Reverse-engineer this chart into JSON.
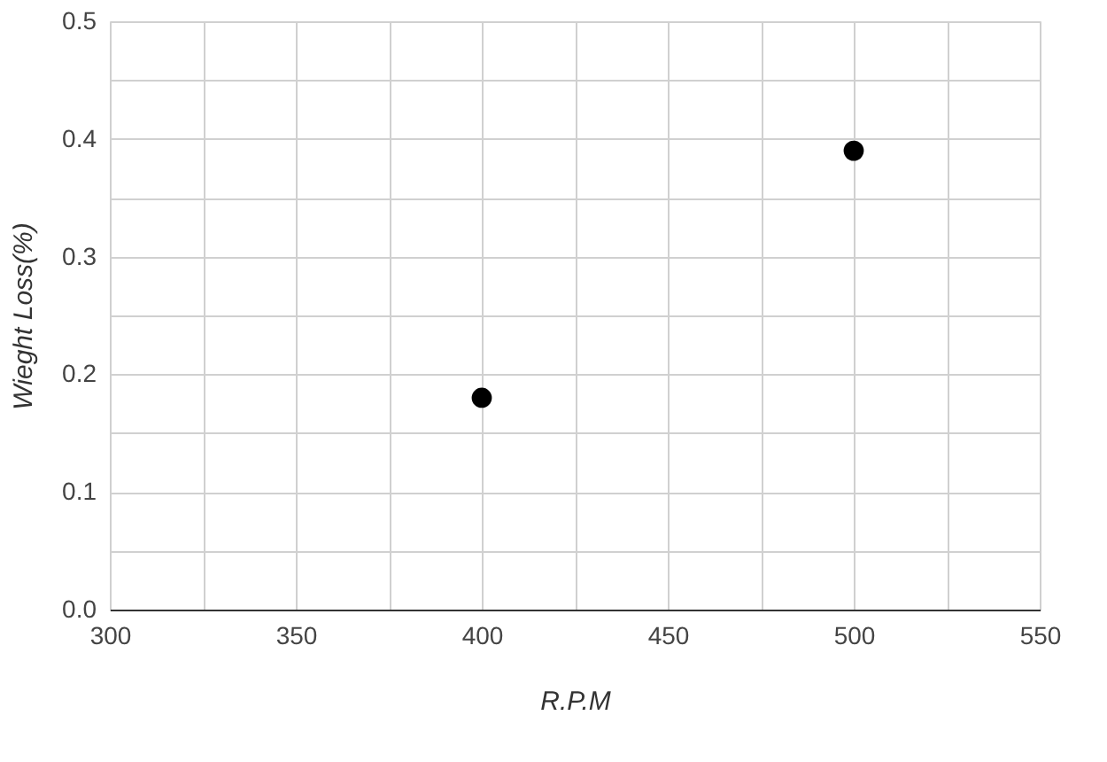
{
  "chart_data": {
    "type": "scatter",
    "xlabel": "R.P.M",
    "ylabel": "Wieght Loss(%)",
    "x": [
      400,
      500
    ],
    "values": [
      0.18,
      0.39
    ],
    "color": "#000000",
    "marker": "circle",
    "xlim": [
      300,
      550
    ],
    "ylim": [
      0,
      0.5
    ],
    "xticks": [
      300,
      {
        "value": 325,
        "label": null
      },
      350,
      {
        "value": 375,
        "label": null
      },
      400,
      {
        "value": 425,
        "label": null
      },
      450,
      {
        "value": 475,
        "label": null
      },
      500,
      {
        "value": 525,
        "label": null
      },
      550
    ],
    "yticks": [
      {
        "value": 0,
        "label": "0.0"
      },
      {
        "value": 0.05,
        "label": null
      },
      0.1,
      {
        "value": 0.15,
        "label": null
      },
      0.2,
      {
        "value": 0.25,
        "label": null
      },
      0.3,
      {
        "value": 0.35,
        "label": null
      },
      0.4,
      {
        "value": 0.45,
        "label": null
      },
      0.5
    ],
    "grid": true
  }
}
